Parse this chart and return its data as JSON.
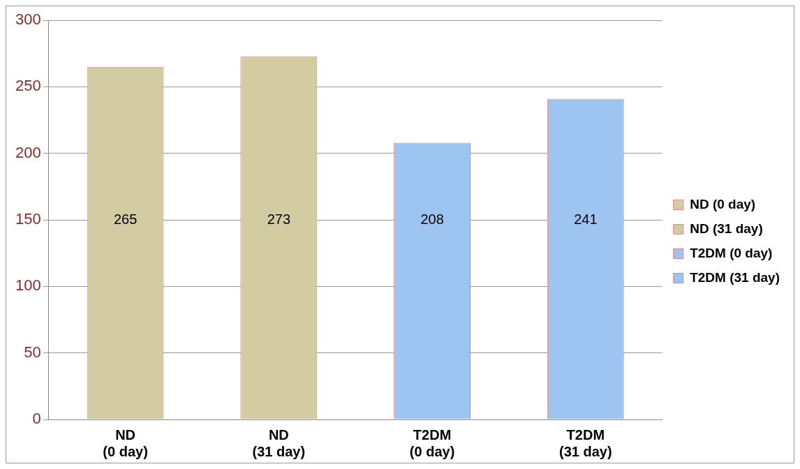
{
  "chart_data": {
    "type": "bar",
    "categories": [
      "ND\n(0 day)",
      "ND\n(31 day)",
      "T2DM\n(0 day)",
      "T2DM\n(31 day)"
    ],
    "series": [
      {
        "name": "ND (0 day)",
        "color": "#d3cba2",
        "values": [
          265,
          null,
          null,
          null
        ]
      },
      {
        "name": "ND (31 day)",
        "color": "#d3cba2",
        "values": [
          null,
          273,
          null,
          null
        ]
      },
      {
        "name": "T2DM (0 day)",
        "color": "#9ec4f2",
        "values": [
          null,
          null,
          208,
          null
        ]
      },
      {
        "name": "T2DM (31 day)",
        "color": "#9ec4f2",
        "values": [
          null,
          null,
          null,
          241
        ]
      }
    ],
    "ylim": [
      0,
      300
    ],
    "yticks": [
      0,
      50,
      100,
      150,
      200,
      250,
      300
    ],
    "grid": "y",
    "legend": "right",
    "data_labels": true
  }
}
